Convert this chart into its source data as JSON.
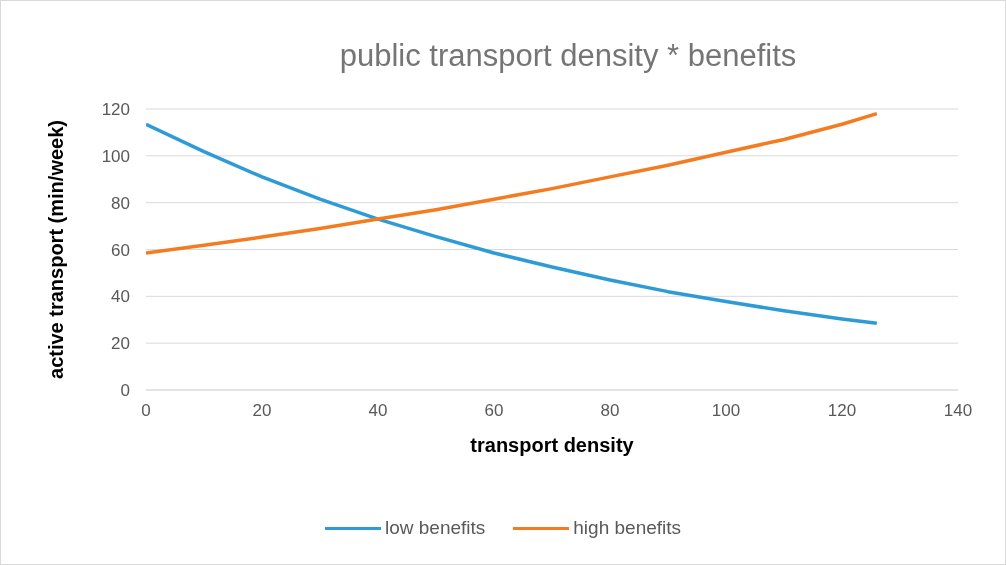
{
  "chart_data": {
    "type": "line",
    "title": "public transport density * benefits",
    "xlabel": "transport density",
    "ylabel": "active transport (min/week)",
    "x": [
      0,
      10,
      20,
      30,
      40,
      50,
      60,
      70,
      80,
      90,
      100,
      110,
      120,
      126
    ],
    "series": [
      {
        "name": "low benefits",
        "color": "#2e9bd6",
        "values": [
          113.5,
          101.8,
          91,
          81.5,
          73,
          65.5,
          58.5,
          52.5,
          47,
          42,
          37.8,
          33.8,
          30.3,
          28.5
        ]
      },
      {
        "name": "high benefits",
        "color": "#f47b20",
        "values": [
          58.5,
          61.8,
          65.3,
          69,
          73,
          77,
          81.5,
          86,
          91,
          96,
          101.5,
          107,
          113.5,
          118
        ]
      }
    ],
    "xlim": [
      0,
      140
    ],
    "xticks": [
      0,
      20,
      40,
      60,
      80,
      100,
      120,
      140
    ],
    "ylim": [
      0,
      120
    ],
    "yticks": [
      0,
      20,
      40,
      60,
      80,
      100,
      120
    ],
    "grid": "y",
    "legend": "bottom",
    "marker": "none",
    "line_style": "solid"
  }
}
